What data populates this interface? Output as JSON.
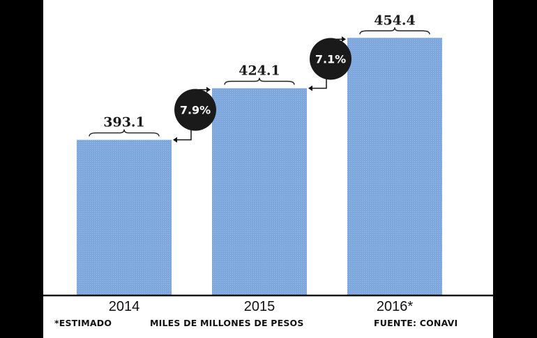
{
  "chart_data": {
    "type": "bar",
    "categories": [
      "2014",
      "2015",
      "2016*"
    ],
    "values": [
      393.1,
      424.1,
      454.4
    ],
    "value_labels": [
      "393.1",
      "424.1",
      "454.4"
    ],
    "growth": [
      "7.9%",
      "7.1%"
    ],
    "bar_color": "#7ea7dd",
    "grid": false,
    "legend": "none"
  },
  "footer": {
    "note": "*ESTIMADO",
    "units": "MILES DE MILLONES DE PESOS",
    "source": "FUENTE: CONAVI"
  }
}
